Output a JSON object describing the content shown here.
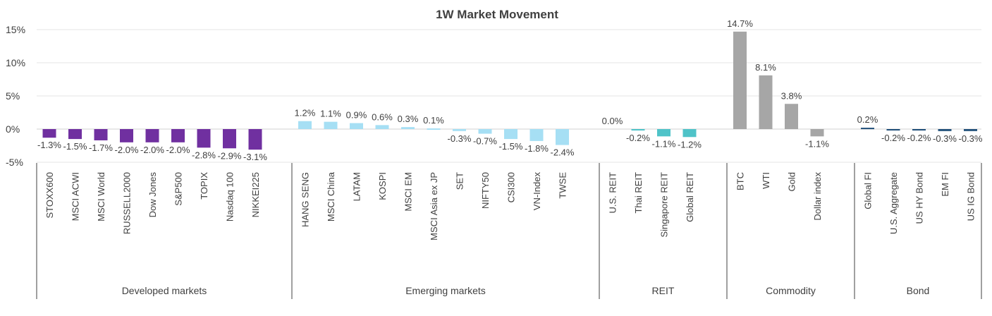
{
  "chart_data": {
    "type": "bar",
    "title": "1W Market Movement",
    "y_unit": "%",
    "ylim": [
      -5,
      15
    ],
    "yticks": [
      15,
      10,
      5,
      0,
      -5
    ],
    "ytick_labels": [
      "15%",
      "10%",
      "5%",
      "0%",
      "-5%"
    ],
    "grid": "horizontal",
    "legend": "none",
    "groups": [
      {
        "name": "Developed  markets",
        "color": "#7030a0",
        "categories": [
          "STOXX600",
          "MSCI ACWI",
          "MSCI World",
          "RUSSELL2000",
          "Dow Jones",
          "S&P500",
          "TOPIX",
          "Nasdaq 100",
          "NIKKEI225"
        ],
        "values": [
          -1.3,
          -1.5,
          -1.7,
          -2.0,
          -2.0,
          -2.0,
          -2.8,
          -2.9,
          -3.1
        ],
        "labels": [
          "-1.3%",
          "-1.5%",
          "-1.7%",
          "-2.0%",
          "-2.0%",
          "-2.0%",
          "-2.8%",
          "-2.9%",
          "-3.1%"
        ]
      },
      {
        "name": "Emerging markets",
        "color": "#a6dff4",
        "categories": [
          "HANG SENG",
          "MSCI China",
          "LATAM",
          "KOSPI",
          "MSCI EM",
          "MSCI Asia ex JP",
          "SET",
          "NIFTY50",
          "CSI300",
          "VN-Index",
          "TWSE"
        ],
        "values": [
          1.2,
          1.1,
          0.9,
          0.6,
          0.3,
          0.1,
          -0.3,
          -0.7,
          -1.5,
          -1.8,
          -2.4
        ],
        "labels": [
          "1.2%",
          "1.1%",
          "0.9%",
          "0.6%",
          "0.3%",
          "0.1%",
          "-0.3%",
          "-0.7%",
          "-1.5%",
          "-1.8%",
          "-2.4%"
        ]
      },
      {
        "name": "REIT",
        "color": "#4fc3c8",
        "categories": [
          "U.S. REIT",
          "Thai REIT",
          "Singapore REIT",
          "Global REIT"
        ],
        "values": [
          0.0,
          -0.2,
          -1.1,
          -1.2
        ],
        "labels": [
          "0.0%",
          "-0.2%",
          "-1.1%",
          "-1.2%"
        ]
      },
      {
        "name": "Commodity",
        "color": "#a6a6a6",
        "categories": [
          "BTC",
          "WTI",
          "Gold",
          "Dollar index"
        ],
        "values": [
          14.7,
          8.1,
          3.8,
          -1.1
        ],
        "labels": [
          "14.7%",
          "8.1%",
          "3.8%",
          "-1.1%"
        ]
      },
      {
        "name": "Bond",
        "color": "#1f4e79",
        "categories": [
          "Global FI",
          "U.S. Aggregate",
          "US HY Bond",
          "EM FI",
          "US IG Bond"
        ],
        "values": [
          0.2,
          -0.2,
          -0.2,
          -0.3,
          -0.3
        ],
        "labels": [
          "0.2%",
          "-0.2%",
          "-0.2%",
          "-0.3%",
          "-0.3%"
        ]
      }
    ]
  }
}
